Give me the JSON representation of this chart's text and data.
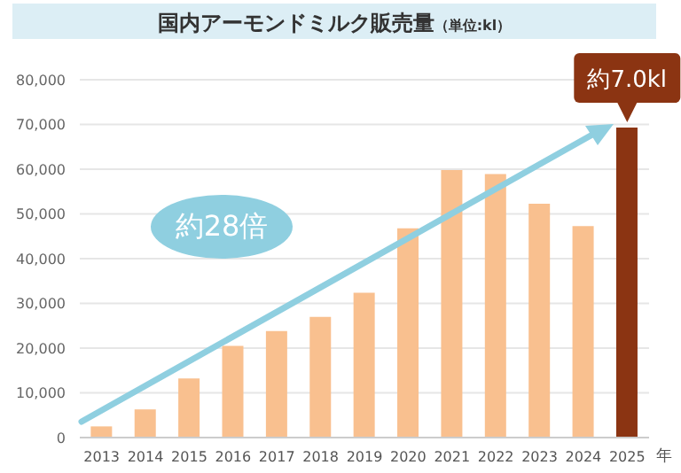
{
  "chart_data": {
    "type": "bar",
    "title": "国内アーモンドミルク販売量",
    "subtitle": "（単位:kl）",
    "xlabel": "年",
    "categories": [
      "2013",
      "2014",
      "2015",
      "2016",
      "2017",
      "2018",
      "2019",
      "2020",
      "2021",
      "2022",
      "2023",
      "2024",
      "2025"
    ],
    "values": [
      2500,
      6300,
      13200,
      20500,
      23800,
      27000,
      32400,
      46800,
      59800,
      58900,
      52300,
      47300,
      69300
    ],
    "colors": [
      "#f9c08f",
      "#f9c08f",
      "#f9c08f",
      "#f9c08f",
      "#f9c08f",
      "#f9c08f",
      "#f9c08f",
      "#f9c08f",
      "#f9c08f",
      "#f9c08f",
      "#f9c08f",
      "#f9c08f",
      "#8b3412"
    ],
    "ylim": [
      0,
      80000
    ],
    "yticks": [
      {
        "value": 0,
        "label": "0"
      },
      {
        "value": 10000,
        "label": "10,000"
      },
      {
        "value": 20000,
        "label": "20,000"
      },
      {
        "value": 30000,
        "label": "30,000"
      },
      {
        "value": 40000,
        "label": "40,000"
      },
      {
        "value": 50000,
        "label": "50,000"
      },
      {
        "value": 60000,
        "label": "60,000"
      },
      {
        "value": 70000,
        "label": "70,000"
      },
      {
        "value": 80000,
        "label": "80,000"
      }
    ],
    "grid": "y",
    "legend": false,
    "annotations": [
      "約28倍",
      {
        "text": "約7.0kl",
        "x": "2025",
        "y": 69300
      }
    ]
  }
}
